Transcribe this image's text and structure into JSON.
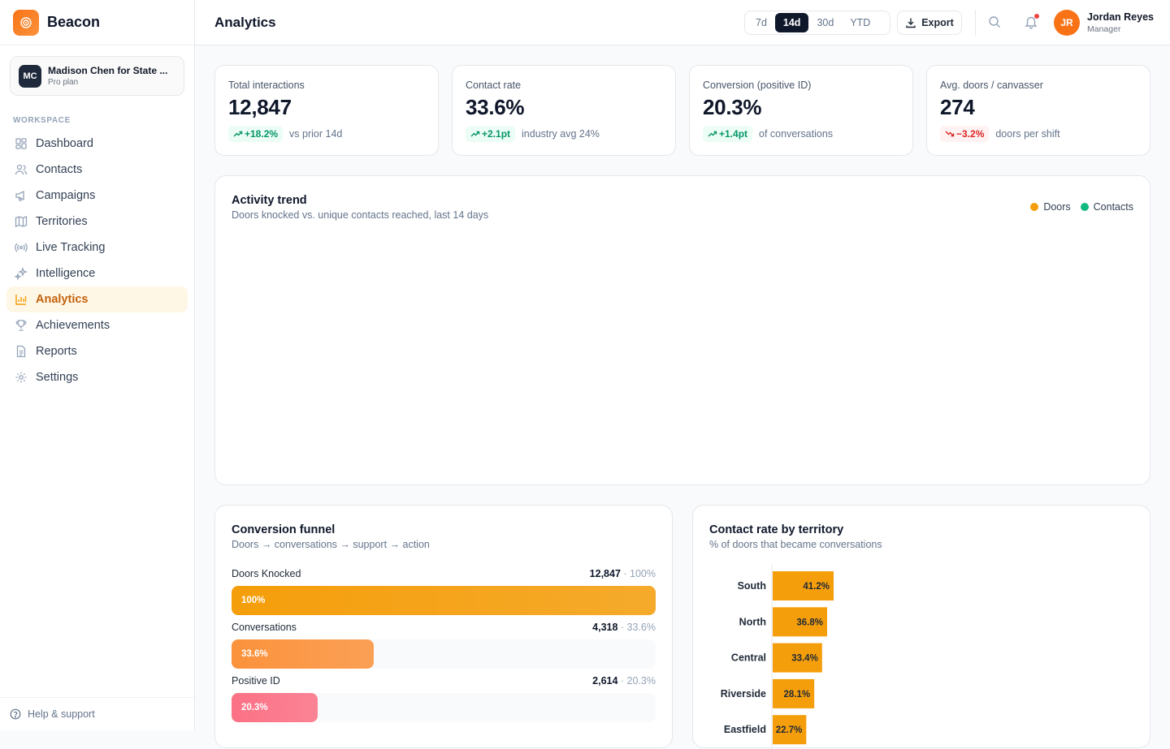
{
  "brand": {
    "name": "Beacon"
  },
  "org": {
    "initials": "MC",
    "name": "Madison Chen for State ...",
    "plan": "Pro plan"
  },
  "sidebar": {
    "section_label": "WORKSPACE",
    "items": [
      {
        "label": "Dashboard",
        "icon": "dashboard-icon",
        "active": false
      },
      {
        "label": "Contacts",
        "icon": "users-icon",
        "active": false
      },
      {
        "label": "Campaigns",
        "icon": "megaphone-icon",
        "active": false
      },
      {
        "label": "Territories",
        "icon": "map-icon",
        "active": false
      },
      {
        "label": "Live Tracking",
        "icon": "radio-icon",
        "active": false
      },
      {
        "label": "Intelligence",
        "icon": "sparkles-icon",
        "active": false
      },
      {
        "label": "Analytics",
        "icon": "bar-chart-icon",
        "active": true
      },
      {
        "label": "Achievements",
        "icon": "trophy-icon",
        "active": false
      },
      {
        "label": "Reports",
        "icon": "file-icon",
        "active": false
      },
      {
        "label": "Settings",
        "icon": "gear-icon",
        "active": false
      }
    ],
    "help_label": "Help & support"
  },
  "header": {
    "title": "Analytics",
    "ranges": [
      {
        "label": "7d",
        "active": false
      },
      {
        "label": "14d",
        "active": true
      },
      {
        "label": "30d",
        "active": false
      },
      {
        "label": "YTD",
        "active": false
      }
    ],
    "export_label": "Export",
    "user": {
      "initials": "JR",
      "name": "Jordan Reyes",
      "role": "Manager"
    }
  },
  "kpis": [
    {
      "label": "Total interactions",
      "value": "12,847",
      "delta": "+18.2%",
      "direction": "up",
      "note": "vs prior 14d"
    },
    {
      "label": "Contact rate",
      "value": "33.6%",
      "delta": "+2.1pt",
      "direction": "up",
      "note": "industry avg 24%"
    },
    {
      "label": "Conversion (positive ID)",
      "value": "20.3%",
      "delta": "+1.4pt",
      "direction": "up",
      "note": "of conversations"
    },
    {
      "label": "Avg. doors / canvasser",
      "value": "274",
      "delta": "−3.2%",
      "direction": "down",
      "note": "doors per shift"
    }
  ],
  "trend": {
    "title": "Activity trend",
    "subtitle": "Doors knocked vs. unique contacts reached, last 14 days",
    "legend": [
      {
        "label": "Doors",
        "color": "#f59e0b"
      },
      {
        "label": "Contacts",
        "color": "#10b981"
      }
    ]
  },
  "funnel": {
    "title": "Conversion funnel",
    "subtitle": "Doors → conversations → support → action",
    "stages": [
      {
        "label": "Doors Knocked",
        "count": "12,847",
        "pct_text": "100%",
        "pct": 100,
        "color": "#f59e0b"
      },
      {
        "label": "Conversations",
        "count": "4,318",
        "pct_text": "33.6%",
        "pct": 33.6,
        "color": "#fb923c"
      },
      {
        "label": "Positive ID",
        "count": "2,614",
        "pct_text": "20.3%",
        "pct": 20.3,
        "color": "#fb7185"
      }
    ]
  },
  "chart_data": {
    "type": "bar",
    "title": "Contact rate by territory",
    "subtitle": "% of doors that became conversations",
    "orientation": "horizontal",
    "categories": [
      "South",
      "North",
      "Central",
      "Riverside",
      "Eastfield"
    ],
    "values": [
      41.2,
      36.8,
      33.4,
      28.1,
      22.7
    ],
    "value_labels": [
      "41.2%",
      "36.8%",
      "33.4%",
      "28.1%",
      "22.7%"
    ],
    "color": "#f59e0b"
  }
}
